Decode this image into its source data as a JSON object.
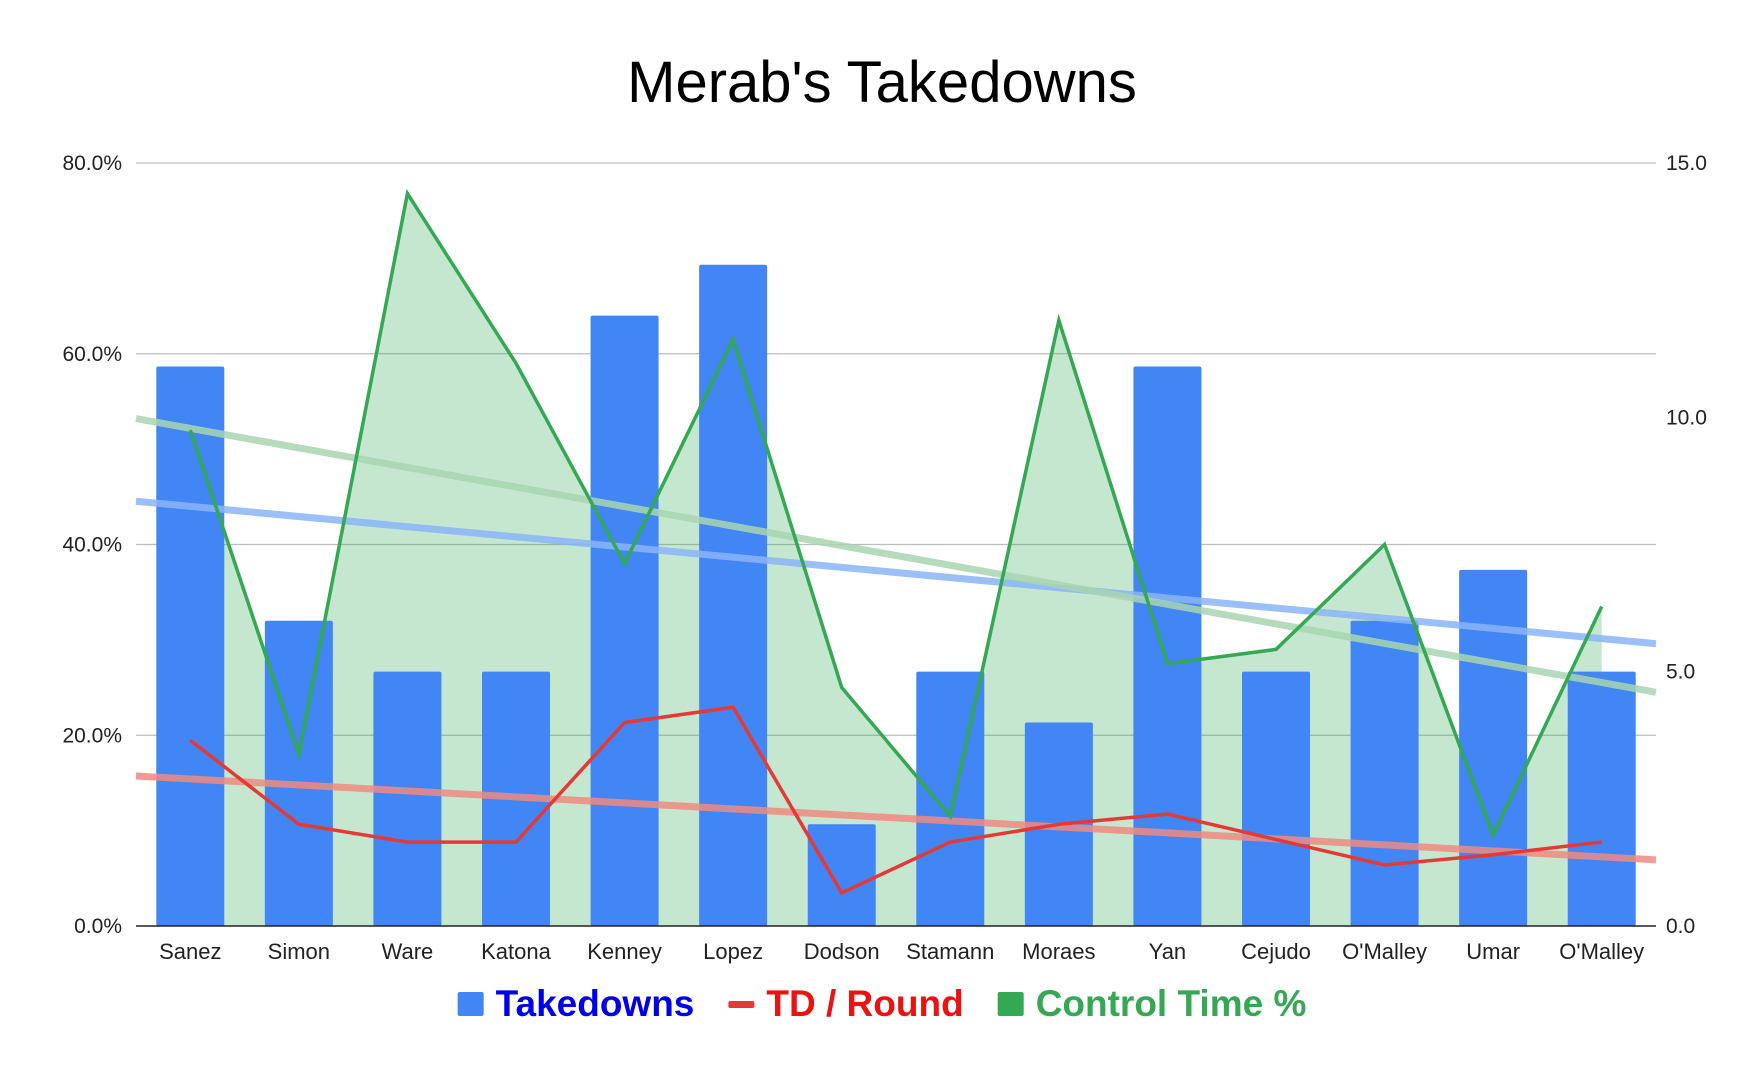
{
  "chart_data": {
    "type": "bar",
    "title": "Merab's Takedowns",
    "categories": [
      "Sanez",
      "Simon",
      "Ware",
      "Katona",
      "Kenney",
      "Lopez",
      "Dodson",
      "Stamann",
      "Moraes",
      "Yan",
      "Cejudo",
      "O'Malley",
      "Umar",
      "O'Malley"
    ],
    "y_left": {
      "ticks": [
        "0.0%",
        "20.0%",
        "40.0%",
        "60.0%",
        "80.0%"
      ],
      "range": [
        0,
        0.8
      ],
      "format": "percent"
    },
    "y_right": {
      "ticks": [
        "0.0",
        "5.0",
        "10.0",
        "15.0"
      ],
      "range": [
        0,
        15
      ]
    },
    "grid": true,
    "legend_position": "bottom",
    "series": [
      {
        "name": "Takedowns",
        "type": "bar",
        "axis": "right",
        "color": "#4285f4",
        "legend_text_color": "#0000ee",
        "values": [
          11,
          6,
          5,
          5,
          12,
          13,
          2,
          5,
          4,
          11,
          5,
          6,
          7,
          5
        ],
        "trendline": {
          "start": 8.35,
          "end": 5.55,
          "color": "#8ab4f8"
        }
      },
      {
        "name": "TD / Round",
        "type": "line",
        "axis": "right",
        "color": "#e53935",
        "legend_text_color": "#ee1111",
        "values": [
          3.65,
          2.0,
          1.65,
          1.65,
          4.0,
          4.3,
          0.65,
          1.65,
          2.0,
          2.2,
          1.7,
          1.2,
          1.4,
          1.65
        ],
        "trendline": {
          "start": 2.95,
          "end": 1.3,
          "color": "#ef8a80"
        }
      },
      {
        "name": "Control Time %",
        "type": "area",
        "axis": "left",
        "color": "#34a853",
        "legend_text_color": "#34a853",
        "values": [
          0.52,
          0.18,
          0.768,
          0.59,
          0.38,
          0.615,
          0.25,
          0.115,
          0.635,
          0.275,
          0.29,
          0.4,
          0.095,
          0.335
        ],
        "trendline": {
          "start": 0.532,
          "end": 0.245,
          "color": "#a8d5b0"
        }
      }
    ]
  }
}
